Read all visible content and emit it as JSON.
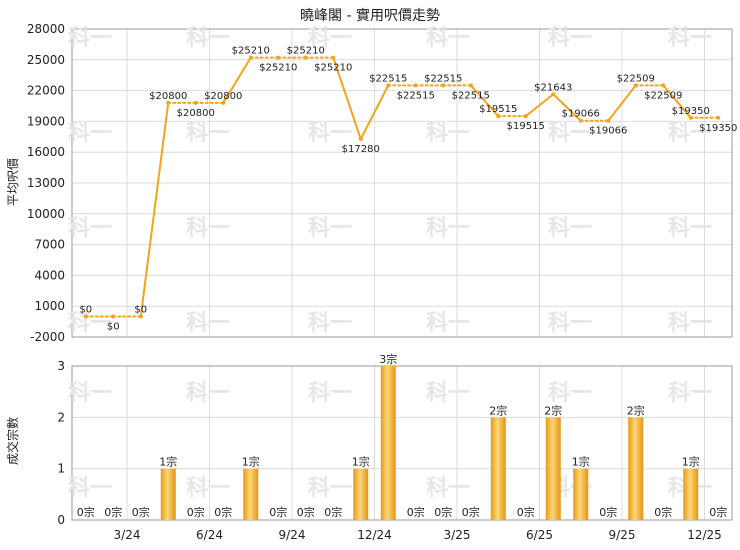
{
  "chart_data": [
    {
      "type": "line",
      "title": "曉峰閣 - 實用呎價走勢",
      "ylabel": "平均呎價",
      "ylim": [
        -2000,
        28000
      ],
      "yticks": [
        -2000,
        1000,
        4000,
        7000,
        10000,
        13000,
        16000,
        19000,
        22000,
        25000,
        28000
      ],
      "x_tick_labels": [
        "3/24",
        "6/24",
        "9/24",
        "12/24",
        "3/25",
        "6/25",
        "9/25",
        "12/25"
      ],
      "values": [
        0,
        0,
        0,
        20800,
        20800,
        20800,
        25210,
        25210,
        25210,
        25210,
        17280,
        22515,
        22515,
        22515,
        22515,
        19515,
        19515,
        21643,
        19066,
        19066,
        22509,
        22509,
        19350,
        19350
      ],
      "value_labels": [
        "$0",
        "$0",
        "$0",
        "$20800",
        "$20800",
        "$20800",
        "$25210",
        "$25210",
        "$25210",
        "$25210",
        "$17280",
        "$22515",
        "$22515",
        "$22515",
        "$22515",
        "$19515",
        "$19515",
        "$21643",
        "$19066",
        "$19066",
        "$22509",
        "$22509",
        "$19350",
        "$19350"
      ],
      "color": "#f5a31a"
    },
    {
      "type": "bar",
      "ylabel": "成交宗數",
      "ylim": [
        0,
        3
      ],
      "yticks": [
        0,
        1,
        2,
        3
      ],
      "values": [
        0,
        0,
        0,
        1,
        0,
        0,
        1,
        0,
        0,
        0,
        1,
        3,
        0,
        0,
        0,
        2,
        0,
        2,
        1,
        0,
        2,
        0,
        1,
        0
      ],
      "value_labels": [
        "0宗",
        "0宗",
        "0宗",
        "1宗",
        "0宗",
        "0宗",
        "1宗",
        "0宗",
        "0宗",
        "0宗",
        "1宗",
        "3宗",
        "0宗",
        "0宗",
        "0宗",
        "2宗",
        "0宗",
        "2宗",
        "1宗",
        "0宗",
        "2宗",
        "0宗",
        "1宗",
        "0宗"
      ],
      "color": "#f0a020"
    }
  ],
  "watermark": "科一"
}
